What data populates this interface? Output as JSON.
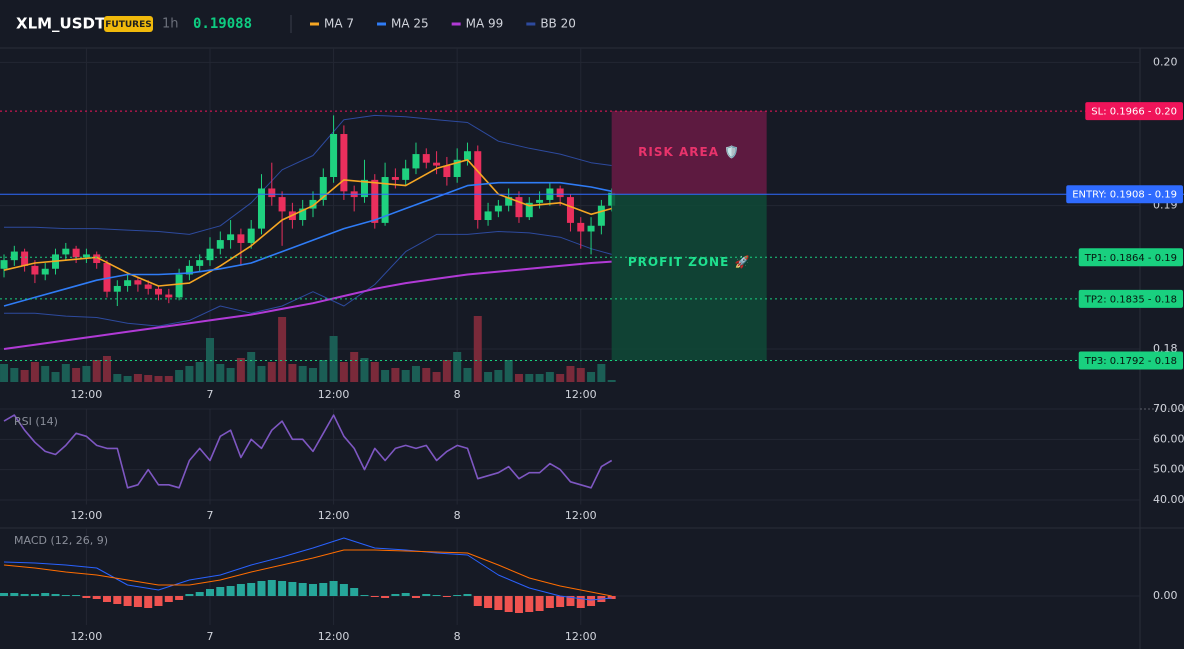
{
  "header": {
    "symbol": "XLM_USDT",
    "badge": "FUTURES",
    "interval": "1h",
    "price": "0.19088"
  },
  "chart_data": [
    {
      "type": "candlestick",
      "x": [
        0,
        1,
        2,
        3,
        4,
        5,
        6,
        7,
        8,
        9,
        10,
        11,
        12,
        13,
        14,
        15,
        16,
        17,
        18,
        19,
        20,
        21,
        22,
        23,
        24,
        25,
        26,
        27,
        28,
        29,
        30,
        31,
        32,
        33,
        34,
        35,
        36,
        37,
        38,
        39,
        40,
        41,
        42,
        43,
        44,
        45,
        46,
        47,
        48,
        49,
        50,
        51,
        52,
        53,
        54,
        55,
        56,
        57,
        58,
        59
      ],
      "open": [
        0.1856,
        0.1862,
        0.1868,
        0.1858,
        0.1852,
        0.1856,
        0.1866,
        0.187,
        0.1864,
        0.1866,
        0.186,
        0.184,
        0.1844,
        0.1848,
        0.1845,
        0.1842,
        0.1838,
        0.1836,
        0.1852,
        0.1858,
        0.1862,
        0.187,
        0.1876,
        0.188,
        0.1874,
        0.1884,
        0.1912,
        0.1906,
        0.1896,
        0.189,
        0.1898,
        0.1904,
        0.192,
        0.195,
        0.191,
        0.1906,
        0.1918,
        0.1888,
        0.192,
        0.1918,
        0.1926,
        0.1936,
        0.193,
        0.1928,
        0.192,
        0.1932,
        0.1938,
        0.189,
        0.1896,
        0.19,
        0.1906,
        0.1892,
        0.1902,
        0.1904,
        0.1912,
        0.1906,
        0.1888,
        0.1882,
        0.1886,
        0.19
      ],
      "high": [
        0.1866,
        0.1872,
        0.187,
        0.1862,
        0.186,
        0.187,
        0.1874,
        0.1872,
        0.187,
        0.1868,
        0.1862,
        0.1848,
        0.1852,
        0.185,
        0.1848,
        0.1844,
        0.1842,
        0.1856,
        0.1862,
        0.1866,
        0.1878,
        0.1882,
        0.189,
        0.1884,
        0.189,
        0.1922,
        0.193,
        0.191,
        0.1902,
        0.1904,
        0.191,
        0.1926,
        0.1963,
        0.1956,
        0.1914,
        0.1932,
        0.1922,
        0.193,
        0.1926,
        0.1932,
        0.1944,
        0.194,
        0.1938,
        0.1934,
        0.194,
        0.1944,
        0.1942,
        0.1902,
        0.1904,
        0.1912,
        0.191,
        0.1906,
        0.191,
        0.1916,
        0.1914,
        0.1908,
        0.1892,
        0.1892,
        0.1904,
        0.1912
      ],
      "low": [
        0.185,
        0.1858,
        0.1854,
        0.1846,
        0.1848,
        0.1852,
        0.1862,
        0.186,
        0.186,
        0.1856,
        0.1836,
        0.183,
        0.184,
        0.184,
        0.1838,
        0.1834,
        0.1832,
        0.1834,
        0.1848,
        0.1854,
        0.1858,
        0.1866,
        0.187,
        0.1858,
        0.187,
        0.188,
        0.19,
        0.1872,
        0.1884,
        0.1886,
        0.1892,
        0.19,
        0.1916,
        0.1904,
        0.1896,
        0.1902,
        0.1884,
        0.1886,
        0.1912,
        0.1914,
        0.1922,
        0.1926,
        0.1922,
        0.1914,
        0.1916,
        0.1928,
        0.1884,
        0.1886,
        0.1892,
        0.1896,
        0.1888,
        0.189,
        0.1898,
        0.19,
        0.19,
        0.1882,
        0.187,
        0.1866,
        0.188,
        0.1896
      ],
      "close": [
        0.1862,
        0.1868,
        0.1858,
        0.1852,
        0.1856,
        0.1866,
        0.187,
        0.1864,
        0.1866,
        0.186,
        0.184,
        0.1844,
        0.1848,
        0.1845,
        0.1842,
        0.1838,
        0.1836,
        0.1852,
        0.1858,
        0.1862,
        0.187,
        0.1876,
        0.188,
        0.1874,
        0.1884,
        0.1912,
        0.1906,
        0.1896,
        0.189,
        0.1898,
        0.1904,
        0.192,
        0.195,
        0.191,
        0.1906,
        0.1918,
        0.1888,
        0.192,
        0.1918,
        0.1926,
        0.1936,
        0.193,
        0.1928,
        0.192,
        0.1932,
        0.1938,
        0.189,
        0.1896,
        0.19,
        0.1906,
        0.1892,
        0.1902,
        0.1904,
        0.1912,
        0.1906,
        0.1888,
        0.1882,
        0.1886,
        0.19,
        0.1909
      ],
      "up_color": "#1fd17f",
      "down_color": "#ea2f5d",
      "xlim": [
        -0.39,
        110.3
      ],
      "xticks": [
        {
          "value": 8,
          "label": "12:00"
        },
        {
          "value": 20,
          "label": "7"
        },
        {
          "value": 32,
          "label": "12:00"
        },
        {
          "value": 44,
          "label": "8"
        },
        {
          "value": 56,
          "label": "12:00"
        }
      ],
      "ylim": [
        0.1777,
        0.201
      ],
      "yticks": [
        {
          "value": 0.18,
          "label": "0.18"
        },
        {
          "value": 0.19,
          "label": "0.19"
        },
        {
          "value": 0.2,
          "label": "0.20"
        }
      ],
      "grid": true,
      "series": [
        {
          "name": "MA 7",
          "color": "#f5a623",
          "x": [
            0,
            3,
            6,
            9,
            12,
            15,
            18,
            21,
            24,
            27,
            30,
            33,
            36,
            39,
            42,
            45,
            48,
            51,
            54,
            57,
            59
          ],
          "values": [
            0.1855,
            0.186,
            0.1862,
            0.1864,
            0.1853,
            0.1844,
            0.1846,
            0.1858,
            0.1872,
            0.189,
            0.19,
            0.1918,
            0.1916,
            0.1914,
            0.1926,
            0.1932,
            0.1908,
            0.19,
            0.1902,
            0.1894,
            0.1898
          ]
        },
        {
          "name": "MA 25",
          "color": "#2f7cf6",
          "x": [
            0,
            3,
            6,
            9,
            12,
            15,
            18,
            21,
            24,
            27,
            30,
            33,
            36,
            39,
            42,
            45,
            48,
            51,
            54,
            57,
            59
          ],
          "values": [
            0.183,
            0.1836,
            0.1842,
            0.1848,
            0.1852,
            0.1852,
            0.1853,
            0.1856,
            0.186,
            0.1868,
            0.1876,
            0.1884,
            0.189,
            0.1898,
            0.1906,
            0.1914,
            0.1916,
            0.1916,
            0.1916,
            0.1913,
            0.191
          ]
        },
        {
          "name": "MA 99",
          "color": "#b13ad6",
          "x": [
            0,
            3,
            6,
            9,
            12,
            15,
            18,
            21,
            24,
            27,
            30,
            33,
            36,
            39,
            42,
            45,
            48,
            51,
            54,
            57,
            59
          ],
          "values": [
            0.18,
            0.1803,
            0.1806,
            0.1809,
            0.1812,
            0.1815,
            0.1818,
            0.1821,
            0.1824,
            0.1828,
            0.1832,
            0.1837,
            0.1842,
            0.1846,
            0.1849,
            0.1852,
            0.1854,
            0.1856,
            0.1858,
            0.186,
            0.1861
          ]
        },
        {
          "name": "BB 20",
          "color": "#2d4a9e",
          "x": [
            0,
            3,
            6,
            9,
            12,
            15,
            18,
            21,
            24,
            27,
            30,
            33,
            36,
            39,
            42,
            45,
            48,
            51,
            54,
            57,
            59
          ],
          "upper": [
            0.1885,
            0.1885,
            0.1884,
            0.1884,
            0.1883,
            0.1882,
            0.188,
            0.1886,
            0.1902,
            0.1925,
            0.1935,
            0.196,
            0.1963,
            0.1962,
            0.196,
            0.1958,
            0.1945,
            0.194,
            0.1936,
            0.193,
            0.1928
          ],
          "lower": [
            0.1825,
            0.1825,
            0.1823,
            0.1822,
            0.1818,
            0.1816,
            0.182,
            0.183,
            0.1825,
            0.183,
            0.184,
            0.183,
            0.1845,
            0.1868,
            0.188,
            0.188,
            0.1882,
            0.1881,
            0.1878,
            0.187,
            0.1866
          ]
        }
      ],
      "volume": {
        "values": [
          18,
          14,
          12,
          20,
          16,
          10,
          18,
          14,
          16,
          22,
          26,
          8,
          6,
          8,
          7,
          6,
          6,
          12,
          16,
          20,
          44,
          18,
          14,
          24,
          30,
          16,
          20,
          65,
          18,
          16,
          14,
          22,
          46,
          20,
          30,
          24,
          20,
          12,
          14,
          12,
          16,
          14,
          10,
          22,
          30,
          14,
          66,
          10,
          12,
          22,
          8,
          8,
          8,
          10,
          8,
          16,
          14,
          10,
          18,
          2
        ],
        "ylim": [
          0,
          100
        ],
        "up_color": "#1b5e55",
        "down_color": "#7a2a3a"
      },
      "zones": [
        {
          "label": "RISK AREA 🛡️",
          "from": 0.1908,
          "to": 0.1966,
          "color": "#6a1b45",
          "text_color": "#e8336b"
        },
        {
          "label": "PROFIT ZONE 🚀",
          "from": 0.1908,
          "to": 0.1792,
          "color": "#0f4a37",
          "text_color": "#1fe08f"
        }
      ],
      "levels": [
        {
          "label": "SL: 0.1966 - 0.20",
          "value": 0.1966,
          "color": "#f0145a",
          "text_color": "#ffffff",
          "style": "dotted"
        },
        {
          "label": "ENTRY: 0.1908 - 0.19",
          "value": 0.1908,
          "color": "#2f6bff",
          "text_color": "#ffffff",
          "style": "solid"
        },
        {
          "label": "TP1: 0.1864 - 0.19",
          "value": 0.1864,
          "color": "#19d07f",
          "text_color": "#07170f",
          "style": "dotted"
        },
        {
          "label": "TP2: 0.1835 - 0.18",
          "value": 0.1835,
          "color": "#19d07f",
          "text_color": "#07170f",
          "style": "dotted"
        },
        {
          "label": "TP3: 0.1792 - 0.18",
          "value": 0.1792,
          "color": "#19d07f",
          "text_color": "#07170f",
          "style": "dotted"
        }
      ]
    },
    {
      "type": "line",
      "title": "RSI (14)",
      "color": "#7e57c2",
      "x": [
        0,
        1,
        2,
        3,
        4,
        5,
        6,
        7,
        8,
        9,
        10,
        11,
        12,
        13,
        14,
        15,
        16,
        17,
        18,
        19,
        20,
        21,
        22,
        23,
        24,
        25,
        26,
        27,
        28,
        29,
        30,
        31,
        32,
        33,
        34,
        35,
        36,
        37,
        38,
        39,
        40,
        41,
        42,
        43,
        44,
        45,
        46,
        47,
        48,
        49,
        50,
        51,
        52,
        53,
        54,
        55,
        56,
        57,
        58,
        59
      ],
      "values": [
        66,
        68,
        63,
        59,
        56,
        55,
        58,
        62,
        61,
        58,
        57,
        57,
        44,
        45,
        50,
        45,
        45,
        44,
        53,
        57,
        53,
        61,
        63,
        54,
        60,
        57,
        63,
        66,
        60,
        60,
        56,
        62,
        68,
        61,
        57,
        50,
        57,
        53,
        57,
        58,
        57,
        58,
        53,
        56,
        58,
        57,
        47,
        48,
        49,
        51,
        47,
        49,
        49,
        52,
        50,
        46,
        45,
        44,
        51,
        53
      ],
      "xlim": [
        -0.39,
        110.3
      ],
      "xticks": [
        {
          "value": 8,
          "label": "12:00"
        },
        {
          "value": 20,
          "label": "7"
        },
        {
          "value": 32,
          "label": "12:00"
        },
        {
          "value": 44,
          "label": "8"
        },
        {
          "value": 56,
          "label": "12:00"
        }
      ],
      "ylim": [
        38.5,
        70
      ],
      "yticks": [
        {
          "value": 40,
          "label": "40.00"
        },
        {
          "value": 50,
          "label": "50.00"
        },
        {
          "value": 60,
          "label": "60.00"
        },
        {
          "value": 70,
          "label": "70.00"
        }
      ],
      "grid": true
    },
    {
      "type": "macd",
      "title": "MACD (12, 26, 9)",
      "x": [
        0,
        1,
        2,
        3,
        4,
        5,
        6,
        7,
        8,
        9,
        10,
        11,
        12,
        13,
        14,
        15,
        16,
        17,
        18,
        19,
        20,
        21,
        22,
        23,
        24,
        25,
        26,
        27,
        28,
        29,
        30,
        31,
        32,
        33,
        34,
        35,
        36,
        37,
        38,
        39,
        40,
        41,
        42,
        43,
        44,
        45,
        46,
        47,
        48,
        49,
        50,
        51,
        52,
        53,
        54,
        55,
        56,
        57,
        58,
        59
      ],
      "histogram": [
        3e-05,
        3e-05,
        2e-05,
        2e-05,
        3e-05,
        2e-05,
        1e-05,
        1e-05,
        -2e-05,
        -3e-05,
        -6e-05,
        -8e-05,
        -0.0001,
        -0.00011,
        -0.00012,
        -0.0001,
        -6e-05,
        -4e-05,
        2e-05,
        4e-05,
        7e-05,
        9e-05,
        0.0001,
        0.00012,
        0.00013,
        0.00015,
        0.00016,
        0.00015,
        0.00014,
        0.00013,
        0.00012,
        0.00013,
        0.00015,
        0.00012,
        8e-05,
        1e-05,
        -1e-05,
        -2e-05,
        2e-05,
        3e-05,
        -2e-05,
        2e-05,
        1e-05,
        -1e-05,
        1e-05,
        2e-05,
        -0.0001,
        -0.00012,
        -0.00014,
        -0.00016,
        -0.00017,
        -0.00016,
        -0.00015,
        -0.00012,
        -0.00011,
        -0.0001,
        -0.00012,
        -0.0001,
        -6e-05,
        -3e-05
      ],
      "up_color": "#26a69a",
      "down_color": "#ef5350",
      "series": [
        {
          "name": "MACD",
          "color": "#2962ff",
          "x": [
            0,
            3,
            6,
            9,
            12,
            15,
            18,
            21,
            24,
            27,
            30,
            33,
            36,
            39,
            42,
            45,
            48,
            51,
            54,
            57,
            59
          ],
          "values": [
            0.00034,
            0.00033,
            0.00031,
            0.00028,
            0.00011,
            6e-05,
            0.00016,
            0.00021,
            0.00031,
            0.00039,
            0.00048,
            0.00058,
            0.00048,
            0.00046,
            0.00043,
            0.00041,
            0.00021,
            8e-05,
            0,
            -4e-05,
            -2e-05
          ]
        },
        {
          "name": "Signal",
          "color": "#ff6d00",
          "x": [
            0,
            3,
            6,
            9,
            12,
            15,
            18,
            21,
            24,
            27,
            30,
            33,
            36,
            39,
            42,
            45,
            48,
            51,
            54,
            57,
            59
          ],
          "values": [
            0.00031,
            0.00028,
            0.00024,
            0.00021,
            0.00016,
            0.00011,
            0.00011,
            0.00016,
            0.00024,
            0.00031,
            0.00038,
            0.00046,
            0.00046,
            0.00045,
            0.00044,
            0.00043,
            0.00031,
            0.00018,
            0.0001,
            4e-05,
            0
          ]
        }
      ],
      "xlim": [
        -0.39,
        110.3
      ],
      "xticks": [
        {
          "value": 8,
          "label": "12:00"
        },
        {
          "value": 20,
          "label": "7"
        },
        {
          "value": 32,
          "label": "12:00"
        },
        {
          "value": 44,
          "label": "8"
        },
        {
          "value": 56,
          "label": "12:00"
        }
      ],
      "ylim": [
        -0.00029,
        0.00068
      ],
      "yticks": [
        {
          "value": 0,
          "label": "0.00"
        }
      ],
      "grid": true
    }
  ]
}
